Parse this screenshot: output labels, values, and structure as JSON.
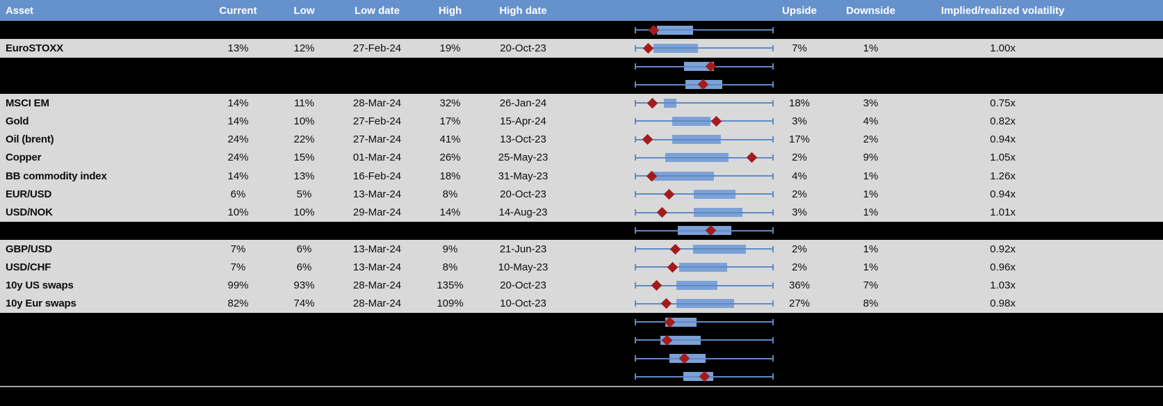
{
  "colors": {
    "header_bg": "#6591CD",
    "row_bg": "#D9D9D9",
    "hidden_row_bg": "#000000",
    "whisker": "#5E8AC7",
    "box_fill": "#7CA1D6",
    "diamond": "#A21C1C",
    "divider": "#A6A6A6",
    "footer_bg": "#000000"
  },
  "header": {
    "columns": [
      {
        "id": "asset",
        "label": "Asset"
      },
      {
        "id": "current",
        "label": "Current"
      },
      {
        "id": "low",
        "label": "Low"
      },
      {
        "id": "low_date",
        "label": "Low date"
      },
      {
        "id": "high",
        "label": "High"
      },
      {
        "id": "high_date",
        "label": "High date"
      },
      {
        "id": "plot",
        "label": ""
      },
      {
        "id": "upside",
        "label": "Upside"
      },
      {
        "id": "downside",
        "label": "Downside"
      },
      {
        "id": "vol",
        "label": "Implied/realized volatility"
      },
      {
        "id": "filler",
        "label": ""
      }
    ]
  },
  "rows": [
    {
      "type": "hidden",
      "plot": {
        "box": [
          0.16,
          0.42
        ],
        "diamond": 0.135
      }
    },
    {
      "type": "data",
      "asset": "EuroSTOXX",
      "current": "13%",
      "low": "12%",
      "low_date": "27-Feb-24",
      "high": "19%",
      "high_date": "20-Oct-23",
      "upside": "7%",
      "downside": "1%",
      "vol": "1.00x",
      "plot": {
        "box": [
          0.135,
          0.455
        ],
        "diamond": 0.095
      }
    },
    {
      "type": "hidden",
      "plot": {
        "box": [
          0.355,
          0.57
        ],
        "diamond": 0.545
      }
    },
    {
      "type": "hidden",
      "plot": {
        "box": [
          0.365,
          0.63
        ],
        "diamond": 0.49
      }
    },
    {
      "type": "data",
      "asset": "MSCI EM",
      "current": "14%",
      "low": "11%",
      "low_date": "28-Mar-24",
      "high": "32%",
      "high_date": "26-Jan-24",
      "upside": "18%",
      "downside": "3%",
      "vol": "0.75x",
      "plot": {
        "box": [
          0.21,
          0.3
        ],
        "diamond": 0.125
      }
    },
    {
      "type": "data",
      "asset": "Gold",
      "current": "14%",
      "low": "10%",
      "low_date": "27-Feb-24",
      "high": "17%",
      "high_date": "15-Apr-24",
      "upside": "3%",
      "downside": "4%",
      "vol": "0.82x",
      "plot": {
        "box": [
          0.27,
          0.545
        ],
        "diamond": 0.585
      }
    },
    {
      "type": "data",
      "asset": "Oil (brent)",
      "current": "24%",
      "low": "22%",
      "low_date": "27-Mar-24",
      "high": "41%",
      "high_date": "13-Oct-23",
      "upside": "17%",
      "downside": "2%",
      "vol": "0.94x",
      "plot": {
        "box": [
          0.27,
          0.62
        ],
        "diamond": 0.09
      }
    },
    {
      "type": "data",
      "asset": "Copper",
      "current": "24%",
      "low": "15%",
      "low_date": "01-Mar-24",
      "high": "26%",
      "high_date": "25-May-23",
      "upside": "2%",
      "downside": "9%",
      "vol": "1.05x",
      "plot": {
        "box": [
          0.22,
          0.675
        ],
        "diamond": 0.84
      }
    },
    {
      "type": "data",
      "asset": "BB commodity index",
      "current": "14%",
      "low": "13%",
      "low_date": "16-Feb-24",
      "high": "18%",
      "high_date": "31-May-23",
      "upside": "4%",
      "downside": "1%",
      "vol": "1.26x",
      "plot": {
        "box": [
          0.125,
          0.57
        ],
        "diamond": 0.12
      }
    },
    {
      "type": "data",
      "asset": "EUR/USD",
      "current": "6%",
      "low": "5%",
      "low_date": "13-Mar-24",
      "high": "8%",
      "high_date": "20-Oct-23",
      "upside": "2%",
      "downside": "1%",
      "vol": "0.94x",
      "plot": {
        "box": [
          0.425,
          0.725
        ],
        "diamond": 0.245
      }
    },
    {
      "type": "data",
      "asset": "USD/NOK",
      "current": "10%",
      "low": "10%",
      "low_date": "29-Mar-24",
      "high": "14%",
      "high_date": "14-Aug-23",
      "upside": "3%",
      "downside": "1%",
      "vol": "1.01x",
      "plot": {
        "box": [
          0.425,
          0.775
        ],
        "diamond": 0.195
      }
    },
    {
      "type": "hidden",
      "plot": {
        "box": [
          0.31,
          0.695
        ],
        "diamond": 0.545
      }
    },
    {
      "type": "data",
      "asset": "GBP/USD",
      "current": "7%",
      "low": "6%",
      "low_date": "13-Mar-24",
      "high": "9%",
      "high_date": "21-Jun-23",
      "upside": "2%",
      "downside": "1%",
      "vol": "0.92x",
      "plot": {
        "box": [
          0.42,
          0.8
        ],
        "diamond": 0.29
      }
    },
    {
      "type": "data",
      "asset": "USD/CHF",
      "current": "7%",
      "low": "6%",
      "low_date": "13-Mar-24",
      "high": "8%",
      "high_date": "10-May-23",
      "upside": "2%",
      "downside": "1%",
      "vol": "0.96x",
      "plot": {
        "box": [
          0.32,
          0.665
        ],
        "diamond": 0.27
      }
    },
    {
      "type": "data",
      "asset": "10y US swaps",
      "current": "99%",
      "low": "93%",
      "low_date": "28-Mar-24",
      "high": "135%",
      "high_date": "20-Oct-23",
      "upside": "36%",
      "downside": "7%",
      "vol": "1.03x",
      "plot": {
        "box": [
          0.3,
          0.595
        ],
        "diamond": 0.155
      }
    },
    {
      "type": "data",
      "asset": "10y Eur swaps",
      "current": "82%",
      "low": "74%",
      "low_date": "28-Mar-24",
      "high": "109%",
      "high_date": "10-Oct-23",
      "upside": "27%",
      "downside": "8%",
      "vol": "0.98x",
      "plot": {
        "box": [
          0.3,
          0.715
        ],
        "diamond": 0.225
      }
    },
    {
      "type": "hidden",
      "plot": {
        "box": [
          0.22,
          0.445
        ],
        "diamond": 0.25
      }
    },
    {
      "type": "hidden",
      "plot": {
        "box": [
          0.185,
          0.475
        ],
        "diamond": 0.23
      }
    },
    {
      "type": "hidden",
      "plot": {
        "box": [
          0.25,
          0.51
        ],
        "diamond": 0.355
      }
    },
    {
      "type": "hidden",
      "plot": {
        "box": [
          0.35,
          0.565
        ],
        "diamond": 0.5
      }
    }
  ],
  "chart_data": {
    "type": "table",
    "columns": [
      "Asset",
      "Current",
      "Low",
      "Low date",
      "High",
      "High date",
      "Upside",
      "Downside",
      "Implied/realized volatility"
    ],
    "rows": [
      [
        "EuroSTOXX",
        "13%",
        "12%",
        "27-Feb-24",
        "19%",
        "20-Oct-23",
        "7%",
        "1%",
        "1.00x"
      ],
      [
        "MSCI EM",
        "14%",
        "11%",
        "28-Mar-24",
        "32%",
        "26-Jan-24",
        "18%",
        "3%",
        "0.75x"
      ],
      [
        "Gold",
        "14%",
        "10%",
        "27-Feb-24",
        "17%",
        "15-Apr-24",
        "3%",
        "4%",
        "0.82x"
      ],
      [
        "Oil (brent)",
        "24%",
        "22%",
        "27-Mar-24",
        "41%",
        "13-Oct-23",
        "17%",
        "2%",
        "0.94x"
      ],
      [
        "Copper",
        "24%",
        "15%",
        "01-Mar-24",
        "26%",
        "25-May-23",
        "2%",
        "9%",
        "1.05x"
      ],
      [
        "BB commodity index",
        "14%",
        "13%",
        "16-Feb-24",
        "18%",
        "31-May-23",
        "4%",
        "1%",
        "1.26x"
      ],
      [
        "EUR/USD",
        "6%",
        "5%",
        "13-Mar-24",
        "8%",
        "20-Oct-23",
        "2%",
        "1%",
        "0.94x"
      ],
      [
        "USD/NOK",
        "10%",
        "10%",
        "29-Mar-24",
        "14%",
        "14-Aug-23",
        "3%",
        "1%",
        "1.01x"
      ],
      [
        "GBP/USD",
        "7%",
        "6%",
        "13-Mar-24",
        "9%",
        "21-Jun-23",
        "2%",
        "1%",
        "0.92x"
      ],
      [
        "USD/CHF",
        "7%",
        "6%",
        "13-Mar-24",
        "8%",
        "10-May-23",
        "2%",
        "1%",
        "0.96x"
      ],
      [
        "10y US swaps",
        "99%",
        "93%",
        "28-Mar-24",
        "135%",
        "20-Oct-23",
        "36%",
        "7%",
        "1.03x"
      ],
      [
        "10y Eur swaps",
        "82%",
        "74%",
        "28-Mar-24",
        "109%",
        "10-Oct-23",
        "27%",
        "8%",
        "0.98x"
      ]
    ],
    "boxplot_column": {
      "type": "boxplot-row-per-asset",
      "whisker_span": "Low value to High value (normalized 0 to 1 per row)",
      "diamond_marker": "Current value position (normalized)",
      "normalized_positions": [
        {
          "row": "hidden-1",
          "box": [
            0.16,
            0.42
          ],
          "diamond": 0.135
        },
        {
          "row": "EuroSTOXX",
          "box": [
            0.135,
            0.455
          ],
          "diamond": 0.095
        },
        {
          "row": "hidden-2",
          "box": [
            0.355,
            0.57
          ],
          "diamond": 0.545
        },
        {
          "row": "hidden-3",
          "box": [
            0.365,
            0.63
          ],
          "diamond": 0.49
        },
        {
          "row": "MSCI EM",
          "box": [
            0.21,
            0.3
          ],
          "diamond": 0.125
        },
        {
          "row": "Gold",
          "box": [
            0.27,
            0.545
          ],
          "diamond": 0.585
        },
        {
          "row": "Oil (brent)",
          "box": [
            0.27,
            0.62
          ],
          "diamond": 0.09
        },
        {
          "row": "Copper",
          "box": [
            0.22,
            0.675
          ],
          "diamond": 0.84
        },
        {
          "row": "BB commodity index",
          "box": [
            0.125,
            0.57
          ],
          "diamond": 0.12
        },
        {
          "row": "EUR/USD",
          "box": [
            0.425,
            0.725
          ],
          "diamond": 0.245
        },
        {
          "row": "USD/NOK",
          "box": [
            0.425,
            0.775
          ],
          "diamond": 0.195
        },
        {
          "row": "hidden-4",
          "box": [
            0.31,
            0.695
          ],
          "diamond": 0.545
        },
        {
          "row": "GBP/USD",
          "box": [
            0.42,
            0.8
          ],
          "diamond": 0.29
        },
        {
          "row": "USD/CHF",
          "box": [
            0.32,
            0.665
          ],
          "diamond": 0.27
        },
        {
          "row": "10y US swaps",
          "box": [
            0.3,
            0.595
          ],
          "diamond": 0.155
        },
        {
          "row": "10y Eur swaps",
          "box": [
            0.3,
            0.715
          ],
          "diamond": 0.225
        },
        {
          "row": "hidden-5",
          "box": [
            0.22,
            0.445
          ],
          "diamond": 0.25
        },
        {
          "row": "hidden-6",
          "box": [
            0.185,
            0.475
          ],
          "diamond": 0.23
        },
        {
          "row": "hidden-7",
          "box": [
            0.25,
            0.51
          ],
          "diamond": 0.355
        },
        {
          "row": "hidden-8",
          "box": [
            0.35,
            0.565
          ],
          "diamond": 0.5
        }
      ]
    },
    "legend_position": "none",
    "grid": false
  }
}
